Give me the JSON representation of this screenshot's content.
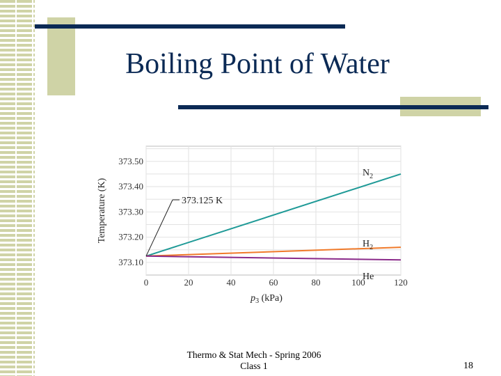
{
  "slide": {
    "title": "Boiling Point of Water",
    "footer_line1": "Thermo & Stat Mech - Spring 2006",
    "footer_line2": "Class 1",
    "page_number": "18"
  },
  "colors": {
    "title": "#0b2a55",
    "rule_bar": "#0b2a55",
    "accent_block": "#cfd3a6",
    "N2": "#1f9a97",
    "H2": "#f07a2a",
    "He": "#8a2a8a"
  },
  "chart_data": {
    "type": "line",
    "ylabel": "Temperature (K)",
    "xlabel_main": "p",
    "xlabel_sub": "3",
    "xlabel_unit": " (kPa)",
    "xlim": [
      0,
      120
    ],
    "ylim": [
      373.05,
      373.56
    ],
    "x_ticks": [
      "0",
      "20",
      "40",
      "60",
      "80",
      "100",
      "120"
    ],
    "y_ticks": [
      "373.10",
      "373.20",
      "373.30",
      "373.40",
      "373.50"
    ],
    "grid": true,
    "annotation": "373.125 K",
    "annotation_point": [
      0,
      373.125
    ],
    "series": [
      {
        "name": "N",
        "sub": "2",
        "x": [
          0,
          120
        ],
        "y": [
          373.125,
          373.45
        ]
      },
      {
        "name": "H",
        "sub": "2",
        "x": [
          0,
          120
        ],
        "y": [
          373.125,
          373.16
        ]
      },
      {
        "name": "He",
        "sub": "",
        "x": [
          0,
          120
        ],
        "y": [
          373.125,
          373.11
        ]
      }
    ]
  }
}
